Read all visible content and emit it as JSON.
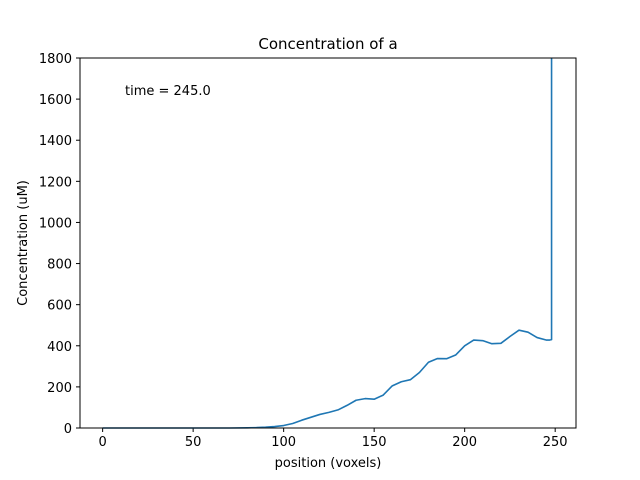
{
  "chart_data": {
    "type": "line",
    "title": "Concentration of a",
    "xlabel": "position (voxels)",
    "ylabel": "Concentration (uM)",
    "annotation": "time = 245.0",
    "xlim": [
      -12.5,
      261.5
    ],
    "ylim": [
      0,
      1800
    ],
    "xticks": [
      0,
      50,
      100,
      150,
      200,
      250
    ],
    "yticks": [
      0,
      200,
      400,
      600,
      800,
      1000,
      1200,
      1400,
      1600,
      1800
    ],
    "grid": false,
    "series_color": "#1f77b4",
    "series": [
      {
        "x": [
          0,
          10,
          20,
          30,
          40,
          50,
          60,
          70,
          80,
          85,
          90,
          95,
          100,
          105,
          110,
          115,
          120,
          125,
          130,
          135,
          140,
          145,
          150,
          155,
          160,
          165,
          170,
          175,
          180,
          185,
          190,
          195,
          200,
          205,
          210,
          215,
          220,
          225,
          230,
          235,
          240,
          245,
          247,
          248,
          248
        ],
        "y": [
          0,
          0,
          0,
          0,
          0,
          0,
          0,
          0,
          1,
          2,
          4,
          7,
          12,
          22,
          38,
          52,
          66,
          76,
          88,
          110,
          135,
          143,
          140,
          160,
          205,
          225,
          235,
          270,
          320,
          338,
          337,
          355,
          400,
          428,
          425,
          410,
          412,
          445,
          476,
          466,
          440,
          428,
          428,
          430,
          1800
        ]
      }
    ]
  }
}
